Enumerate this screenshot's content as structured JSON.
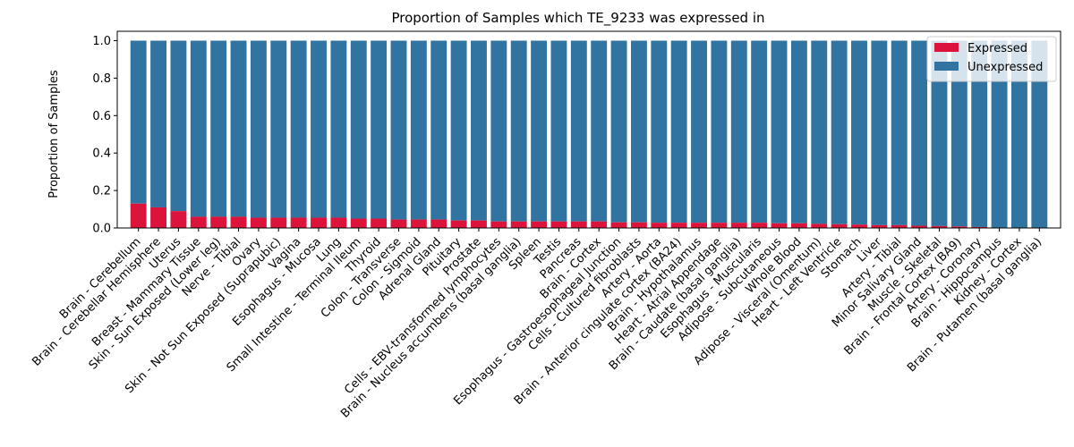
{
  "chart_data": {
    "type": "bar",
    "stacked": true,
    "title": "Proportion of Samples which TE_9233 was expressed in",
    "xlabel": "",
    "ylabel": "Proportion of Samples",
    "ylim": [
      0,
      1.05
    ],
    "yticks": [
      0.0,
      0.2,
      0.4,
      0.6,
      0.8,
      1.0
    ],
    "ytick_labels": [
      "0.0",
      "0.2",
      "0.4",
      "0.6",
      "0.8",
      "1.0"
    ],
    "grid": false,
    "legend_position": "top-right",
    "categories": [
      "Brain - Cerebellum",
      "Brain - Cerebellar Hemisphere",
      "Uterus",
      "Breast - Mammary Tissue",
      "Skin - Sun Exposed (Lower leg)",
      "Nerve - Tibial",
      "Ovary",
      "Skin - Not Sun Exposed (Suprapubic)",
      "Vagina",
      "Esophagus - Mucosa",
      "Lung",
      "Small Intestine - Terminal Ileum",
      "Thyroid",
      "Colon - Transverse",
      "Colon - Sigmoid",
      "Adrenal Gland",
      "Pituitary",
      "Prostate",
      "Cells - EBV-transformed lymphocytes",
      "Brain - Nucleus accumbens (basal ganglia)",
      "Spleen",
      "Testis",
      "Pancreas",
      "Brain - Cortex",
      "Esophagus - Gastroesophageal Junction",
      "Cells - Cultured fibroblasts",
      "Artery - Aorta",
      "Brain - Anterior cingulate cortex (BA24)",
      "Brain - Hypothalamus",
      "Heart - Atrial Appendage",
      "Brain - Caudate (basal ganglia)",
      "Esophagus - Muscularis",
      "Adipose - Subcutaneous",
      "Whole Blood",
      "Adipose - Visceral (Omentum)",
      "Heart - Left Ventricle",
      "Stomach",
      "Liver",
      "Artery - Tibial",
      "Minor Salivary Gland",
      "Muscle - Skeletal",
      "Brain - Frontal Cortex (BA9)",
      "Artery - Coronary",
      "Brain - Hippocampus",
      "Kidney - Cortex",
      "Brain - Putamen (basal ganglia)"
    ],
    "series": [
      {
        "name": "Expressed",
        "color": "#dc143c",
        "values": [
          0.13,
          0.11,
          0.09,
          0.06,
          0.06,
          0.06,
          0.055,
          0.055,
          0.055,
          0.055,
          0.055,
          0.05,
          0.05,
          0.045,
          0.045,
          0.045,
          0.04,
          0.04,
          0.035,
          0.035,
          0.035,
          0.035,
          0.035,
          0.035,
          0.03,
          0.03,
          0.028,
          0.028,
          0.028,
          0.028,
          0.028,
          0.028,
          0.025,
          0.025,
          0.022,
          0.02,
          0.018,
          0.015,
          0.015,
          0.012,
          0.01,
          0.008,
          0.005,
          0.0,
          0.0,
          0.0
        ]
      },
      {
        "name": "Unexpressed",
        "color": "#3274a1",
        "values": [
          0.87,
          0.89,
          0.91,
          0.94,
          0.94,
          0.94,
          0.945,
          0.945,
          0.945,
          0.945,
          0.945,
          0.95,
          0.95,
          0.955,
          0.955,
          0.955,
          0.96,
          0.96,
          0.965,
          0.965,
          0.965,
          0.965,
          0.965,
          0.965,
          0.97,
          0.97,
          0.972,
          0.972,
          0.972,
          0.972,
          0.972,
          0.972,
          0.975,
          0.975,
          0.978,
          0.98,
          0.982,
          0.985,
          0.985,
          0.988,
          0.99,
          0.992,
          0.995,
          1.0,
          1.0,
          1.0
        ]
      }
    ]
  }
}
